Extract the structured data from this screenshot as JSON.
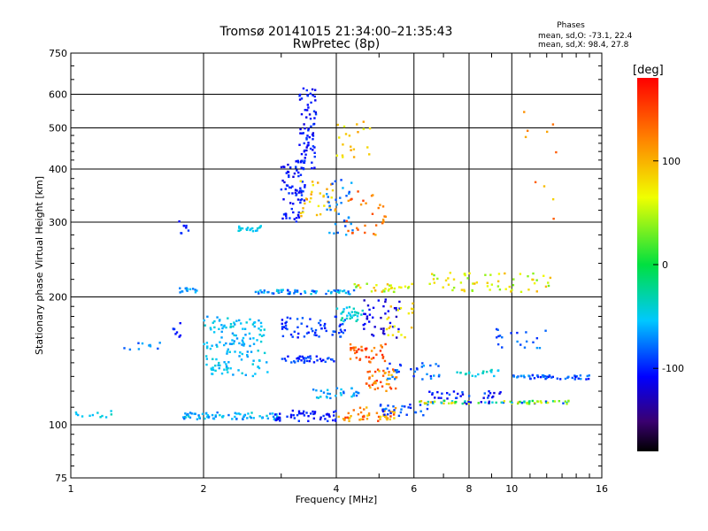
{
  "chart_data": {
    "type": "scatter",
    "title": "Tromsø 20141015 21:34:00–21:35:43",
    "subtitle": "RwPretec (8p)",
    "xlabel": "Frequency [MHz]",
    "ylabel": "Stationary phase Virtual Height [km]",
    "xscale": "log",
    "yscale": "log",
    "xlim": [
      1,
      16
    ],
    "ylim": [
      75,
      750
    ],
    "xticks": [
      1,
      2,
      4,
      6,
      8,
      10,
      16
    ],
    "yticks": [
      75,
      100,
      200,
      300,
      400,
      500,
      600,
      750
    ],
    "grid": true,
    "stats": {
      "header": "Phases",
      "o_line": "mean, sd,O: -73.1, 22.4",
      "x_line": "mean, sd,X:  98.4, 27.8"
    },
    "colorbar": {
      "label": "[deg]",
      "ticks": [
        100,
        0,
        -100
      ],
      "range": [
        -180,
        180
      ]
    },
    "clusters": [
      {
        "x": [
          1.0,
          1.25
        ],
        "y": [
          104,
          108
        ],
        "phase": [
          -60,
          -30
        ],
        "n": 12
      },
      {
        "x": [
          1.3,
          1.6
        ],
        "y": [
          150,
          156
        ],
        "phase": [
          -90,
          -60
        ],
        "n": 10
      },
      {
        "x": [
          1.7,
          1.8
        ],
        "y": [
          160,
          175
        ],
        "phase": [
          -110,
          -90
        ],
        "n": 8
      },
      {
        "x": [
          1.75,
          1.85
        ],
        "y": [
          280,
          305
        ],
        "phase": [
          -110,
          -90
        ],
        "n": 8
      },
      {
        "x": [
          1.75,
          1.95
        ],
        "y": [
          205,
          210
        ],
        "phase": [
          -80,
          -50
        ],
        "n": 14
      },
      {
        "x": [
          1.8,
          3.0
        ],
        "y": [
          103,
          107
        ],
        "phase": [
          -80,
          -40
        ],
        "n": 70
      },
      {
        "x": [
          2.0,
          2.8
        ],
        "y": [
          130,
          180
        ],
        "phase": [
          -70,
          -40
        ],
        "n": 140
      },
      {
        "x": [
          2.4,
          2.7
        ],
        "y": [
          285,
          295
        ],
        "phase": [
          -60,
          -40
        ],
        "n": 20
      },
      {
        "x": [
          2.6,
          4.4
        ],
        "y": [
          203,
          208
        ],
        "phase": [
          -100,
          -40
        ],
        "n": 60
      },
      {
        "x": [
          2.9,
          4.0
        ],
        "y": [
          102,
          108
        ],
        "phase": [
          -120,
          -90
        ],
        "n": 50
      },
      {
        "x": [
          3.0,
          3.4
        ],
        "y": [
          300,
          420
        ],
        "phase": [
          -120,
          -90
        ],
        "n": 80
      },
      {
        "x": [
          3.3,
          3.6
        ],
        "y": [
          400,
          620
        ],
        "phase": [
          -120,
          -90
        ],
        "n": 70
      },
      {
        "x": [
          3.3,
          4.0
        ],
        "y": [
          310,
          380
        ],
        "phase": [
          70,
          120
        ],
        "n": 30
      },
      {
        "x": [
          3.0,
          4.0
        ],
        "y": [
          140,
          145
        ],
        "phase": [
          -110,
          -80
        ],
        "n": 40
      },
      {
        "x": [
          3.0,
          4.2
        ],
        "y": [
          160,
          180
        ],
        "phase": [
          -110,
          -80
        ],
        "n": 60
      },
      {
        "x": [
          3.5,
          4.5
        ],
        "y": [
          115,
          122
        ],
        "phase": [
          -90,
          -40
        ],
        "n": 30
      },
      {
        "x": [
          3.8,
          4.4
        ],
        "y": [
          280,
          380
        ],
        "phase": [
          -90,
          -60
        ],
        "n": 30
      },
      {
        "x": [
          4.0,
          4.6
        ],
        "y": [
          175,
          190
        ],
        "phase": [
          -60,
          -20
        ],
        "n": 30
      },
      {
        "x": [
          4.0,
          5.5
        ],
        "y": [
          102,
          110
        ],
        "phase": [
          80,
          160
        ],
        "n": 50
      },
      {
        "x": [
          4.3,
          5.2
        ],
        "y": [
          140,
          155
        ],
        "phase": [
          110,
          170
        ],
        "n": 40
      },
      {
        "x": [
          4.5,
          5.5
        ],
        "y": [
          120,
          135
        ],
        "phase": [
          90,
          160
        ],
        "n": 40
      },
      {
        "x": [
          4.6,
          5.6
        ],
        "y": [
          160,
          200
        ],
        "phase": [
          -130,
          -100
        ],
        "n": 40
      },
      {
        "x": [
          4.2,
          5.2
        ],
        "y": [
          280,
          360
        ],
        "phase": [
          100,
          160
        ],
        "n": 30
      },
      {
        "x": [
          4.0,
          4.8
        ],
        "y": [
          420,
          520
        ],
        "phase": [
          60,
          110
        ],
        "n": 20
      },
      {
        "x": [
          4.4,
          6.0
        ],
        "y": [
          205,
          215
        ],
        "phase": [
          20,
          110
        ],
        "n": 30
      },
      {
        "x": [
          5.0,
          6.5
        ],
        "y": [
          105,
          112
        ],
        "phase": [
          -110,
          -70
        ],
        "n": 30
      },
      {
        "x": [
          5.2,
          6.0
        ],
        "y": [
          160,
          195
        ],
        "phase": [
          60,
          100
        ],
        "n": 20
      },
      {
        "x": [
          5.2,
          7.0
        ],
        "y": [
          128,
          140
        ],
        "phase": [
          -100,
          -60
        ],
        "n": 30
      },
      {
        "x": [
          6.0,
          13.5
        ],
        "y": [
          112,
          114
        ],
        "phase": [
          -120,
          100
        ],
        "n": 80
      },
      {
        "x": [
          6.5,
          9.5
        ],
        "y": [
          115,
          120
        ],
        "phase": [
          -120,
          -80
        ],
        "n": 30
      },
      {
        "x": [
          6.5,
          12.5
        ],
        "y": [
          205,
          228
        ],
        "phase": [
          30,
          100
        ],
        "n": 60
      },
      {
        "x": [
          7.5,
          9.5
        ],
        "y": [
          130,
          135
        ],
        "phase": [
          -60,
          -30
        ],
        "n": 20
      },
      {
        "x": [
          10.0,
          15.0
        ],
        "y": [
          128,
          131
        ],
        "phase": [
          -110,
          -60
        ],
        "n": 50
      },
      {
        "x": [
          9.0,
          12.0
        ],
        "y": [
          150,
          170
        ],
        "phase": [
          -100,
          -60
        ],
        "n": 20
      },
      {
        "x": [
          10.5,
          13.0
        ],
        "y": [
          300,
          600
        ],
        "phase": [
          80,
          140
        ],
        "n": 10
      }
    ]
  }
}
